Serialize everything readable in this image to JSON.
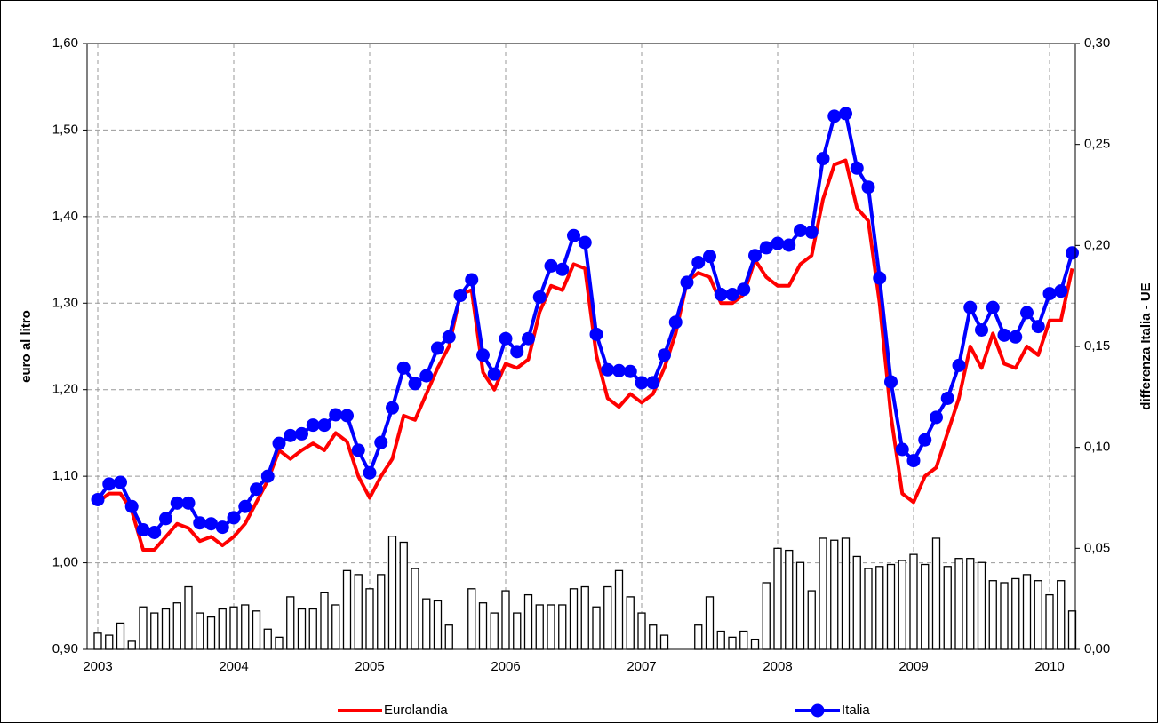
{
  "chart_data": {
    "type": "line",
    "categories": [
      "2003",
      null,
      null,
      null,
      null,
      null,
      null,
      null,
      null,
      null,
      null,
      null,
      "2004",
      null,
      null,
      null,
      null,
      null,
      null,
      null,
      null,
      null,
      null,
      null,
      "2005",
      null,
      null,
      null,
      null,
      null,
      null,
      null,
      null,
      null,
      null,
      null,
      "2006",
      null,
      null,
      null,
      null,
      null,
      null,
      null,
      null,
      null,
      null,
      null,
      "2007",
      null,
      null,
      null,
      null,
      null,
      null,
      null,
      null,
      null,
      null,
      null,
      "2008",
      null,
      null,
      null,
      null,
      null,
      null,
      null,
      null,
      null,
      null,
      null,
      "2009",
      null,
      null,
      null,
      null,
      null,
      null,
      null,
      null,
      null,
      null,
      null,
      "2010",
      null,
      null
    ],
    "y_label": "euro al litro",
    "y2_label": "differenza Italia - UE",
    "ylim": [
      0.9,
      1.6
    ],
    "yticks": [
      {
        "value": 0.9,
        "label": "0,90"
      },
      {
        "value": 1.0,
        "label": "1,00"
      },
      {
        "value": 1.1,
        "label": "1,10"
      },
      {
        "value": 1.2,
        "label": "1,20"
      },
      {
        "value": 1.3,
        "label": "1,30"
      },
      {
        "value": 1.4,
        "label": "1,40"
      },
      {
        "value": 1.5,
        "label": "1,50"
      },
      {
        "value": 1.6,
        "label": "1,60"
      }
    ],
    "y2lim": [
      0,
      0.3
    ],
    "y2ticks": [
      {
        "value": 0,
        "label": "0,00"
      },
      {
        "value": 0.05,
        "label": "0,05"
      },
      {
        "value": 0.1,
        "label": "0,10"
      },
      {
        "value": 0.15,
        "label": "0,15"
      },
      {
        "value": 0.2,
        "label": "0,20"
      },
      {
        "value": 0.25,
        "label": "0,25"
      },
      {
        "value": 0.3,
        "label": "0,30"
      }
    ],
    "grid": true,
    "legend": "bottom",
    "series": [
      {
        "type": "bar",
        "axis": "y2",
        "color": "#ffffff",
        "values": [
          0.008,
          0.007,
          0.013,
          0.004,
          0.021,
          0.018,
          0.02,
          0.023,
          0.031,
          0.018,
          0.016,
          0.02,
          0.021,
          0.022,
          0.019,
          0.01,
          0.006,
          0.026,
          0.02,
          0.02,
          0.028,
          0.022,
          0.039,
          0.037,
          0.03,
          0.037,
          0.056,
          0.053,
          0.04,
          0.025,
          0.024,
          0.012,
          0,
          0.03,
          0.023,
          0.018,
          0.029,
          0.018,
          0.027,
          0.022,
          0.022,
          0.022,
          0.03,
          0.031,
          0.021,
          0.031,
          0.039,
          0.026,
          0.018,
          0.012,
          0.007,
          0,
          0,
          0.012,
          0.026,
          0.009,
          0.006,
          0.009,
          0.005,
          0.033,
          0.05,
          0.049,
          0.043,
          0.029,
          0.055,
          0.054,
          0.055,
          0.046,
          0.04,
          0.041,
          0.042,
          0.044,
          0.047,
          0.042,
          0.055,
          0.041,
          0.045,
          0.045,
          0.043,
          0.034,
          0.033,
          0.035,
          0.037,
          0.034,
          0.027,
          0.034,
          0.019
        ]
      },
      {
        "name": "Eurolandia",
        "type": "line",
        "color": "#ff0000",
        "values": [
          1.07,
          1.08,
          1.08,
          1.06,
          1.015,
          1.015,
          1.03,
          1.045,
          1.04,
          1.025,
          1.03,
          1.02,
          1.03,
          1.045,
          1.07,
          1.095,
          1.13,
          1.12,
          1.13,
          1.138,
          1.13,
          1.15,
          1.14,
          1.1,
          1.075,
          1.1,
          1.12,
          1.17,
          1.165,
          1.195,
          1.225,
          1.25,
          1.31,
          1.315,
          1.22,
          1.2,
          1.23,
          1.225,
          1.235,
          1.29,
          1.32,
          1.315,
          1.345,
          1.34,
          1.24,
          1.19,
          1.18,
          1.195,
          1.185,
          1.195,
          1.225,
          1.265,
          1.325,
          1.335,
          1.33,
          1.3,
          1.3,
          1.31,
          1.35,
          1.33,
          1.32,
          1.32,
          1.345,
          1.355,
          1.42,
          1.46,
          1.465,
          1.41,
          1.395,
          1.3,
          1.17,
          1.08,
          1.07,
          1.1,
          1.11,
          1.15,
          1.19,
          1.25,
          1.225,
          1.265,
          1.23,
          1.225,
          1.25,
          1.24,
          1.28,
          1.28,
          1.34
        ]
      },
      {
        "name": "Italia",
        "type": "line",
        "marker": true,
        "color": "#0000ff",
        "values": [
          1.073,
          1.091,
          1.093,
          1.065,
          1.038,
          1.035,
          1.051,
          1.069,
          1.069,
          1.046,
          1.045,
          1.041,
          1.052,
          1.065,
          1.085,
          1.1,
          1.138,
          1.147,
          1.149,
          1.159,
          1.159,
          1.171,
          1.17,
          1.13,
          1.104,
          1.139,
          1.179,
          1.225,
          1.207,
          1.216,
          1.248,
          1.261,
          1.309,
          1.327,
          1.24,
          1.218,
          1.259,
          1.244,
          1.259,
          1.307,
          1.343,
          1.339,
          1.378,
          1.37,
          1.264,
          1.223,
          1.222,
          1.221,
          1.208,
          1.208,
          1.24,
          1.278,
          1.324,
          1.347,
          1.354,
          1.31,
          1.31,
          1.316,
          1.355,
          1.364,
          1.369,
          1.367,
          1.384,
          1.382,
          1.467,
          1.516,
          1.519,
          1.456,
          1.434,
          1.329,
          1.209,
          1.131,
          1.118,
          1.142,
          1.168,
          1.19,
          1.228,
          1.295,
          1.269,
          1.295,
          1.263,
          1.261,
          1.289,
          1.273,
          1.311,
          1.314,
          1.358
        ]
      }
    ]
  }
}
